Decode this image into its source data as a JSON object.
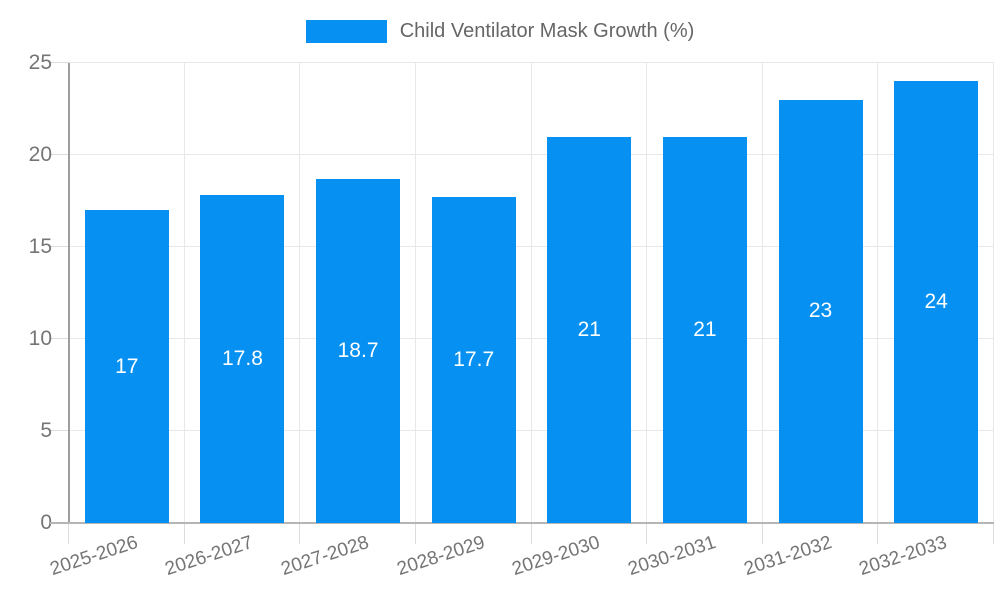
{
  "legend": {
    "label": "Child Ventilator Mask Growth (%)"
  },
  "chart_data": {
    "type": "bar",
    "title": "Child Ventilator Mask Growth (%)",
    "categories": [
      "2025-2026",
      "2026-2027",
      "2027-2028",
      "2028-2029",
      "2029-2030",
      "2030-2031",
      "2031-2032",
      "2032-2033"
    ],
    "values": [
      17,
      17.8,
      18.7,
      17.7,
      21,
      21,
      23,
      24
    ],
    "xlabel": "",
    "ylabel": "",
    "ylim": [
      0,
      25
    ],
    "ytick_step": 5,
    "y_tick_labels": [
      "0",
      "5",
      "10",
      "15",
      "20",
      "25"
    ],
    "grid": true,
    "legend_position": "top",
    "value_labels": "inside-center"
  },
  "colors": {
    "bar": "#0590f2",
    "grid": "#e8e8e8",
    "y_axis": "#9e9e9e",
    "x_axis": "#b5b5b5",
    "tick": "#dcdcdc",
    "axis_text": "#757575",
    "legend_text": "#666666",
    "value_text": "#ffffff",
    "background": "#ffffff"
  }
}
